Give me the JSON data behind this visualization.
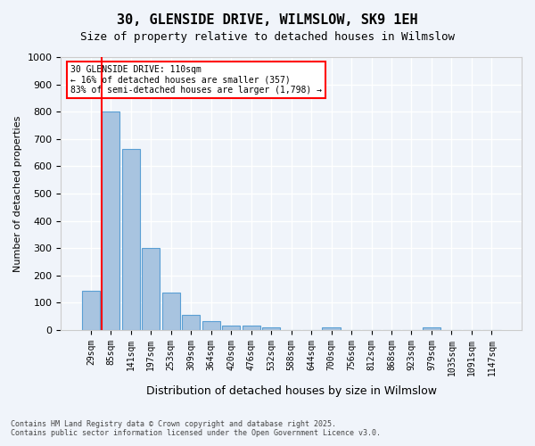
{
  "title_line1": "30, GLENSIDE DRIVE, WILMSLOW, SK9 1EH",
  "title_line2": "Size of property relative to detached houses in Wilmslow",
  "xlabel": "Distribution of detached houses by size in Wilmslow",
  "ylabel": "Number of detached properties",
  "categories": [
    "29sqm",
    "85sqm",
    "141sqm",
    "197sqm",
    "253sqm",
    "309sqm",
    "364sqm",
    "420sqm",
    "476sqm",
    "532sqm",
    "588sqm",
    "644sqm",
    "700sqm",
    "756sqm",
    "812sqm",
    "868sqm",
    "923sqm",
    "979sqm",
    "1035sqm",
    "1091sqm",
    "1147sqm"
  ],
  "values": [
    145,
    800,
    665,
    300,
    137,
    55,
    33,
    18,
    18,
    10,
    0,
    0,
    10,
    0,
    0,
    0,
    0,
    10,
    0,
    0,
    0
  ],
  "bar_color": "#a8c4e0",
  "bar_edge_color": "#5a9fd4",
  "red_line_index": 1,
  "annotation_title": "30 GLENSIDE DRIVE: 110sqm",
  "annotation_line2": "← 16% of detached houses are smaller (357)",
  "annotation_line3": "83% of semi-detached houses are larger (1,798) →",
  "ylim": [
    0,
    1000
  ],
  "yticks": [
    0,
    100,
    200,
    300,
    400,
    500,
    600,
    700,
    800,
    900,
    1000
  ],
  "background_color": "#f0f4fa",
  "grid_color": "#ffffff",
  "footer_line1": "Contains HM Land Registry data © Crown copyright and database right 2025.",
  "footer_line2": "Contains public sector information licensed under the Open Government Licence v3.0."
}
